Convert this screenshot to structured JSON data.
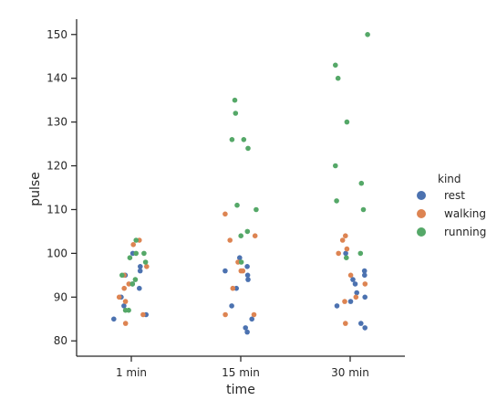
{
  "chart_data": {
    "type": "scatter",
    "kind": "strip",
    "xlabel": "time",
    "ylabel": "pulse",
    "categories": [
      "1 min",
      "15 min",
      "30 min"
    ],
    "ylim": [
      76.5,
      153.5
    ],
    "yticks": [
      80,
      90,
      100,
      110,
      120,
      130,
      140,
      150
    ],
    "grid": false,
    "legend": {
      "title": "kind",
      "position": "right"
    },
    "series": [
      {
        "name": "rest",
        "color": "#4c72b0",
        "values": [
          [
            85,
            86,
            88,
            90,
            92,
            93,
            95,
            96,
            97,
            100
          ],
          [
            82,
            83,
            85,
            88,
            92,
            94,
            95,
            96,
            97,
            99
          ],
          [
            83,
            84,
            88,
            89,
            90,
            91,
            93,
            94,
            95,
            96,
            100
          ]
        ]
      },
      {
        "name": "walking",
        "color": "#dd8452",
        "values": [
          [
            84,
            86,
            89,
            90,
            92,
            93,
            95,
            97,
            102,
            103
          ],
          [
            86,
            86,
            92,
            96,
            96,
            98,
            103,
            104,
            109
          ],
          [
            84,
            89,
            90,
            93,
            95,
            100,
            101,
            103,
            104
          ]
        ]
      },
      {
        "name": "running",
        "color": "#55a868",
        "values": [
          [
            87,
            87,
            93,
            94,
            95,
            98,
            99,
            100,
            100,
            103
          ],
          [
            98,
            104,
            105,
            110,
            111,
            124,
            126,
            126,
            132,
            135
          ],
          [
            99,
            100,
            110,
            112,
            116,
            120,
            130,
            140,
            143,
            150
          ]
        ]
      }
    ]
  }
}
